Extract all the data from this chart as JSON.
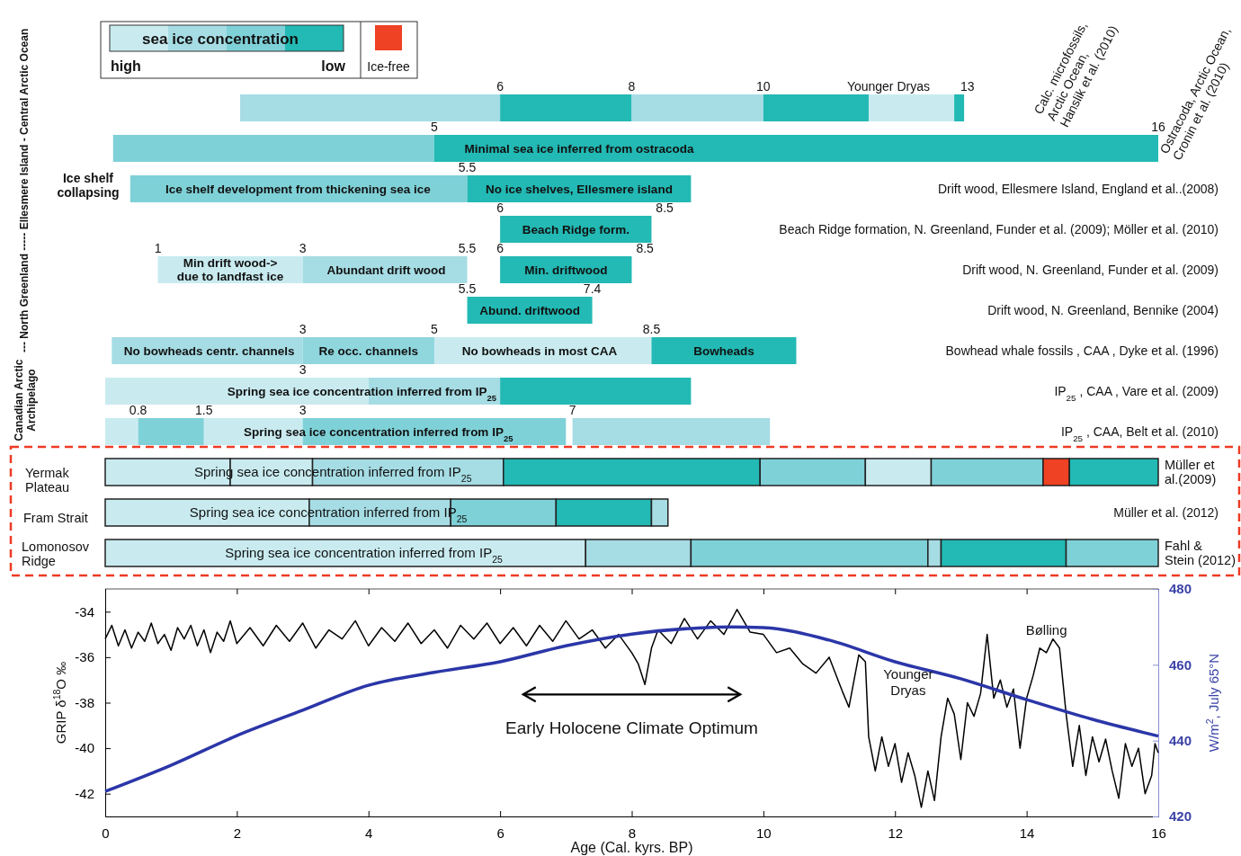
{
  "chart_data": [
    {
      "type": "bar",
      "orientation": "horizontal",
      "legend_title": "sea ice concentration",
      "xlim": [
        0,
        16
      ],
      "tick_labels": false,
      "categories": [
        "Calc. microfossils,\nArctic Ocean,\nHanslik et al. (2010)",
        "Ostracoda, Arctic Ocean,\nCronin et al. (2010)",
        "Drift wood, Ellesmere Island, England et al..(2008)",
        "Beach Ridge formation, N. Greenland, Funder et al. (2009); Möller et al. (2010)",
        "Drift wood, N. Greenland, Funder et al. (2009)",
        "Drift wood, N. Greenland, Bennike (2004)",
        "Bowhead whale fossils , CAA , Dyke et al. (1996)",
        "IP$_{25}$ , CAA , Vare et al. (2009)",
        "IP$_{25}$ , CAA, Belt et al. (2010)",
        "Müller et\nal.(2009)",
        "Müller et al. (2012)",
        "Fahl &\nStein (2012)"
      ],
      "series": [
        {
          "base": [
            2.05,
            0.12,
            0.38,
            6,
            0.8,
            5.5,
            0.1,
            0,
            0,
            0,
            0,
            0
          ],
          "values": [
            3.95,
            4.88,
            5.12,
            2.3,
            2.2,
            1.9,
            2.9,
            4,
            0.5,
            1.9,
            3.1,
            7.3
          ],
          "colors": [
            "#a6dce4",
            "#7fd1d8",
            "#7fd1d8",
            "#23b9b4",
            "#c9ebf0",
            "#23b9b4",
            "#a6dce4",
            "#c9ebf0",
            "#c9ebf0",
            "#c9ebf0",
            "#c9ebf0",
            "#c9ebf0"
          ]
        },
        {
          "base": [
            6,
            5,
            5.5,
            null,
            3,
            null,
            3,
            4,
            0.5,
            1.9,
            3.1,
            7.3
          ],
          "values": [
            2,
            11,
            3.4,
            null,
            2.5,
            null,
            2,
            2,
            1,
            1.25,
            2.15,
            1.6
          ],
          "colors": [
            "#23b9b4",
            "#23b9b4",
            "#23b9b4",
            null,
            "#a6dce4",
            null,
            "#8fd6dd",
            "#a6dce4",
            "#7fd1d8",
            "#c9ebf0",
            "#a6dce4",
            "#a6dce4"
          ]
        },
        {
          "base": [
            8,
            null,
            null,
            null,
            6,
            null,
            5,
            6,
            1.5,
            3.15,
            5.25,
            8.9
          ],
          "values": [
            2,
            null,
            null,
            null,
            2,
            null,
            3.3,
            2.9,
            1.5,
            2.9,
            1.6,
            3.6
          ],
          "colors": [
            "#a6dce4",
            null,
            null,
            null,
            "#23b9b4",
            null,
            "#c9ebf0",
            "#23b9b4",
            "#c9ebf0",
            "#a6dce4",
            "#7fd1d8",
            "#7fd1d8"
          ]
        },
        {
          "base": [
            10,
            null,
            null,
            null,
            null,
            null,
            8.3,
            null,
            3,
            6.05,
            6.85,
            12.5
          ],
          "values": [
            1.6,
            null,
            null,
            null,
            null,
            null,
            2.2,
            null,
            4,
            3.9,
            1.45,
            0.2
          ],
          "colors": [
            "#23b9b4",
            null,
            null,
            null,
            null,
            null,
            "#23b9b4",
            null,
            "#7fd1d8",
            "#23b9b4",
            "#23b9b4",
            "#a6dce4"
          ]
        },
        {
          "base": [
            11.6,
            null,
            null,
            null,
            null,
            null,
            null,
            null,
            7.1,
            9.95,
            8.3,
            12.7
          ],
          "values": [
            1.3,
            null,
            null,
            null,
            null,
            null,
            null,
            null,
            3,
            1.6,
            0.25,
            1.9
          ],
          "colors": [
            "#c9ebf0",
            null,
            null,
            null,
            null,
            null,
            null,
            null,
            "#a6dce4",
            "#7fd1d8",
            "#a6dce4",
            "#23b9b4"
          ]
        },
        {
          "base": [
            12.9,
            null,
            null,
            null,
            null,
            null,
            null,
            null,
            null,
            11.55,
            null,
            14.6
          ],
          "values": [
            0.15,
            null,
            null,
            null,
            null,
            null,
            null,
            null,
            null,
            1,
            null,
            1.4
          ],
          "colors": [
            "#23b9b4",
            null,
            null,
            null,
            null,
            null,
            null,
            null,
            null,
            "#c9ebf0",
            null,
            "#7fd1d8"
          ]
        },
        {
          "base": [
            null,
            null,
            null,
            null,
            null,
            null,
            null,
            null,
            null,
            12.55,
            null,
            null
          ],
          "values": [
            null,
            null,
            null,
            null,
            null,
            null,
            null,
            null,
            null,
            1.7,
            null,
            null
          ],
          "colors": [
            null,
            null,
            null,
            null,
            null,
            null,
            null,
            null,
            null,
            "#7fd1d8",
            null,
            null
          ]
        },
        {
          "base": [
            null,
            null,
            null,
            null,
            null,
            null,
            null,
            null,
            null,
            14.25,
            null,
            null
          ],
          "values": [
            null,
            null,
            null,
            null,
            null,
            null,
            null,
            null,
            null,
            0.4,
            null,
            null
          ],
          "colors": [
            null,
            null,
            null,
            null,
            null,
            null,
            null,
            null,
            null,
            "#ef4123",
            null,
            null
          ]
        },
        {
          "base": [
            null,
            null,
            null,
            null,
            null,
            null,
            null,
            null,
            null,
            14.65,
            null,
            null
          ],
          "values": [
            null,
            null,
            null,
            null,
            null,
            null,
            null,
            null,
            null,
            1.35,
            null,
            null
          ],
          "colors": [
            null,
            null,
            null,
            null,
            null,
            null,
            null,
            null,
            null,
            "#23b9b4",
            null,
            null
          ]
        }
      ],
      "annotations": [
        "high",
        "low",
        "Ice-free",
        "--- North Greenland ----- Ellesmere Island - Central Arctic Ocean",
        "Canadian Arctic\nArchipelago",
        "Ice shelf\ncollapsing",
        "Yermak\nPlateau",
        "Fram Strait",
        "Lomonosov\nRidge",
        "6",
        "8",
        "10",
        "Younger Dryas",
        "13",
        "5",
        "16",
        "5.5",
        "6",
        "8.5",
        "1",
        "3",
        "5.5",
        "6",
        "8.5",
        "5.5",
        "7.4",
        "3",
        "5",
        "8.5",
        "3",
        "0.8",
        "1.5",
        "3",
        "7",
        "Minimal sea ice inferred from ostracoda",
        "Ice shelf development from thickening sea ice",
        "No ice shelves, Ellesmere island",
        "Beach Ridge form.",
        "Min drift wood->\ndue to landfast ice",
        "Abundant  drift wood",
        "Min. driftwood",
        "Abund. driftwood",
        "No bowheads centr. channels",
        "Re occ.  channels",
        "No bowheads in most CAA",
        "Bowheads",
        "Spring sea ice concentration inferred from IP$_{25}$",
        "Spring sea ice concentration inferred from IP$_{25}$",
        "Spring sea ice concentration inferred from IP$_{25}$",
        "Spring sea ice concentration inferred from IP$_{25}$",
        "Spring sea ice concentration inferred from IP$_{25}$"
      ]
    },
    {
      "type": "line",
      "xlabel": "Age (Cal. kyrs. BP)",
      "ylabel": "GRIP δ$^{18}$O ‰",
      "y2label": "W/m$^{2}$, July 65°N",
      "xlim": [
        0,
        16
      ],
      "xticks": [
        0,
        2,
        4,
        6,
        8,
        10,
        12,
        14,
        16
      ],
      "ylim": [
        -43,
        -33
      ],
      "yticks": [
        -42,
        -40,
        -38,
        -36,
        -34
      ],
      "y2lim": [
        420,
        480
      ],
      "y2ticks": [
        420,
        440,
        460,
        480
      ],
      "series": [
        {
          "color": "#000000",
          "x": [
            0,
            0.1,
            0.2,
            0.3,
            0.4,
            0.5,
            0.6,
            0.7,
            0.8,
            0.9,
            1.0,
            1.1,
            1.2,
            1.3,
            1.4,
            1.5,
            1.6,
            1.7,
            1.8,
            1.9,
            2.0,
            2.2,
            2.4,
            2.6,
            2.8,
            3.0,
            3.2,
            3.4,
            3.6,
            3.8,
            4.0,
            4.2,
            4.4,
            4.6,
            4.8,
            5.0,
            5.2,
            5.4,
            5.6,
            5.8,
            6.0,
            6.2,
            6.4,
            6.6,
            6.8,
            7.0,
            7.2,
            7.4,
            7.6,
            7.8,
            8.0,
            8.1,
            8.2,
            8.3,
            8.4,
            8.6,
            8.8,
            9.0,
            9.2,
            9.4,
            9.6,
            9.8,
            10.0,
            10.2,
            10.4,
            10.6,
            10.8,
            11.0,
            11.2,
            11.3,
            11.45,
            11.55,
            11.6,
            11.7,
            11.8,
            11.9,
            12.0,
            12.1,
            12.2,
            12.3,
            12.4,
            12.5,
            12.6,
            12.7,
            12.8,
            12.9,
            13.0,
            13.1,
            13.2,
            13.3,
            13.4,
            13.5,
            13.6,
            13.7,
            13.8,
            13.9,
            14.0,
            14.1,
            14.2,
            14.3,
            14.4,
            14.5,
            14.6,
            14.7,
            14.8,
            14.9,
            15.0,
            15.1,
            15.2,
            15.3,
            15.4,
            15.5,
            15.6,
            15.7,
            15.8,
            15.9,
            15.95,
            16.0
          ],
          "values": [
            -35.2,
            -34.6,
            -35.5,
            -34.8,
            -35.6,
            -34.9,
            -35.3,
            -34.5,
            -35.4,
            -35.0,
            -35.7,
            -34.7,
            -35.2,
            -34.6,
            -35.5,
            -34.8,
            -35.8,
            -34.9,
            -35.3,
            -34.4,
            -35.4,
            -34.7,
            -35.5,
            -34.6,
            -35.3,
            -34.5,
            -35.6,
            -34.8,
            -35.2,
            -34.4,
            -35.5,
            -34.7,
            -35.3,
            -34.5,
            -35.4,
            -34.8,
            -35.6,
            -34.6,
            -35.2,
            -34.5,
            -35.4,
            -34.7,
            -35.5,
            -34.6,
            -35.3,
            -34.4,
            -35.2,
            -34.8,
            -35.6,
            -35.0,
            -35.8,
            -36.3,
            -37.2,
            -35.6,
            -34.8,
            -35.4,
            -34.3,
            -35.2,
            -34.4,
            -35.0,
            -33.9,
            -34.9,
            -35.0,
            -35.8,
            -35.6,
            -36.3,
            -36.7,
            -36.0,
            -37.5,
            -38.2,
            -35.9,
            -36.2,
            -39.5,
            -41.0,
            -39.5,
            -40.8,
            -39.8,
            -41.5,
            -40.2,
            -41.2,
            -42.6,
            -41.0,
            -42.3,
            -39.5,
            -37.8,
            -38.5,
            -40.5,
            -38.0,
            -38.6,
            -37.6,
            -35.0,
            -37.8,
            -37.0,
            -38.2,
            -37.4,
            -40.0,
            -37.8,
            -36.8,
            -35.6,
            -35.8,
            -35.2,
            -35.6,
            -38.5,
            -40.8,
            -39.0,
            -41.2,
            -39.5,
            -40.6,
            -39.6,
            -41.0,
            -42.2,
            -39.8,
            -40.8,
            -40.0,
            -42.0,
            -41.2,
            -39.8,
            -40.2
          ]
        },
        {
          "color": "#2b36a8",
          "axis": "y2",
          "x": [
            0,
            1,
            2,
            3,
            4,
            5,
            6,
            7,
            8,
            9,
            9.5,
            10,
            11,
            12,
            13,
            14,
            15,
            16
          ],
          "values": [
            426.6,
            433.5,
            441.3,
            448,
            454.6,
            458,
            460.8,
            465,
            468.1,
            469.7,
            470,
            469.8,
            466.5,
            460.8,
            456.3,
            450.8,
            445.6,
            441.2
          ]
        }
      ],
      "annotations": [
        "Bølling",
        "Younger\nDryas",
        "Early Holocene Climate Optimum"
      ]
    }
  ]
}
